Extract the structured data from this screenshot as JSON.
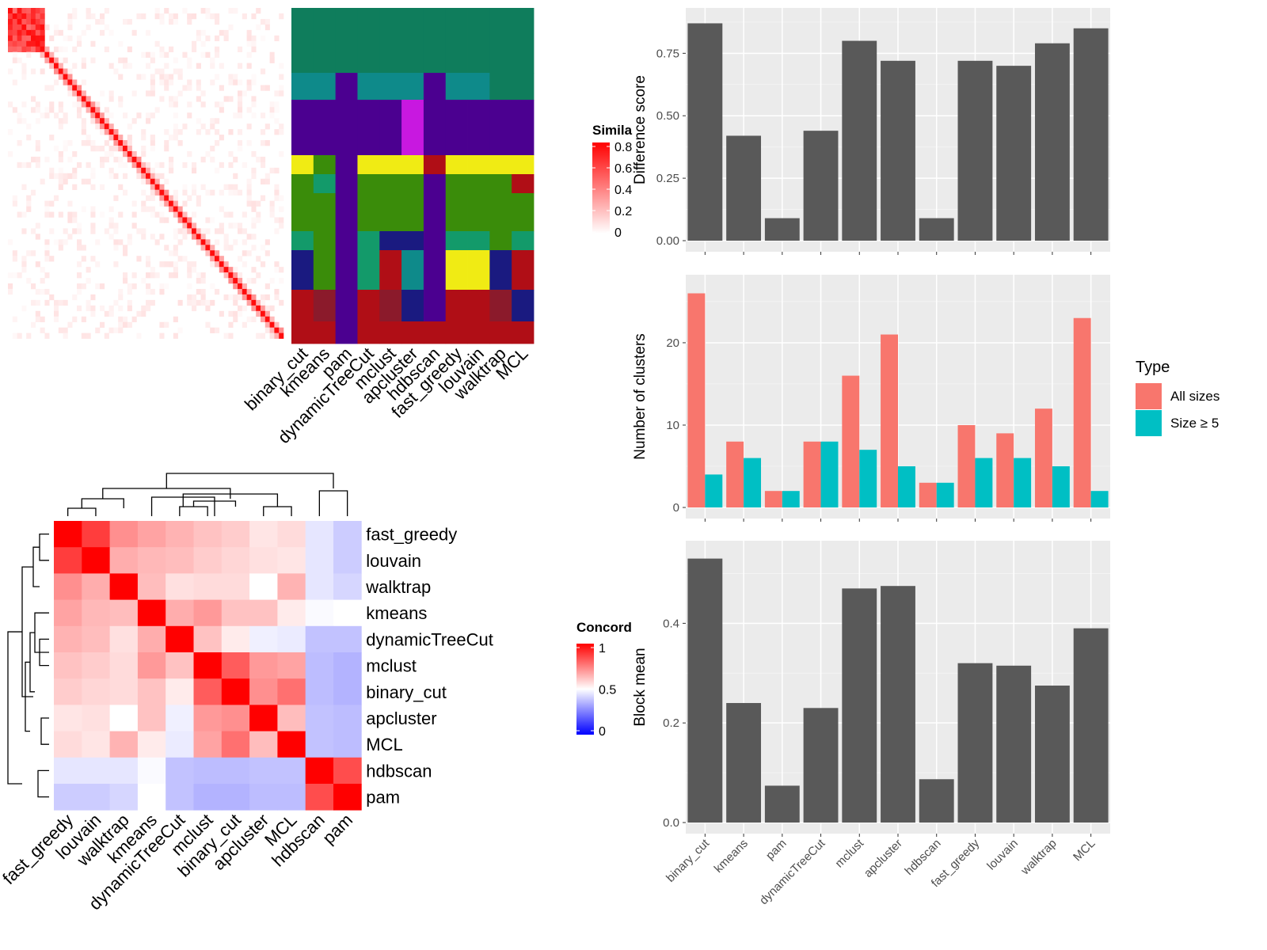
{
  "similarity_heatmap": {
    "legend_title": "Simila",
    "legend_ticks": [
      "0.8",
      "0.6",
      "0.4",
      "0.2",
      "0"
    ],
    "method_labels": [
      "binary_cut",
      "kmeans",
      "pam",
      "dynamicTreeCut",
      "mclust",
      "apcluster",
      "hdbscan",
      "fast_greedy",
      "louvain",
      "walktrap",
      "MCL"
    ]
  },
  "concordance_heatmap": {
    "legend_title": "Concord",
    "legend_ticks": [
      "1",
      "0.5",
      "0"
    ],
    "order": [
      "fast_greedy",
      "louvain",
      "walktrap",
      "kmeans",
      "dynamicTreeCut",
      "mclust",
      "binary_cut",
      "apcluster",
      "MCL",
      "hdbscan",
      "pam"
    ],
    "matrix": [
      [
        1.0,
        0.88,
        0.72,
        0.68,
        0.65,
        0.62,
        0.6,
        0.55,
        0.57,
        0.45,
        0.4
      ],
      [
        0.88,
        1.0,
        0.66,
        0.64,
        0.63,
        0.6,
        0.58,
        0.56,
        0.55,
        0.45,
        0.4
      ],
      [
        0.72,
        0.66,
        1.0,
        0.63,
        0.56,
        0.57,
        0.57,
        0.5,
        0.65,
        0.45,
        0.42
      ],
      [
        0.68,
        0.64,
        0.63,
        1.0,
        0.66,
        0.7,
        0.62,
        0.62,
        0.54,
        0.49,
        0.5
      ],
      [
        0.65,
        0.63,
        0.56,
        0.66,
        1.0,
        0.62,
        0.54,
        0.47,
        0.46,
        0.38,
        0.38
      ],
      [
        0.62,
        0.6,
        0.57,
        0.7,
        0.62,
        1.0,
        0.82,
        0.7,
        0.68,
        0.37,
        0.35
      ],
      [
        0.6,
        0.58,
        0.57,
        0.62,
        0.54,
        0.82,
        1.0,
        0.72,
        0.78,
        0.37,
        0.35
      ],
      [
        0.55,
        0.56,
        0.5,
        0.62,
        0.47,
        0.7,
        0.72,
        1.0,
        0.63,
        0.38,
        0.37
      ],
      [
        0.57,
        0.55,
        0.65,
        0.54,
        0.46,
        0.68,
        0.78,
        0.63,
        1.0,
        0.38,
        0.37
      ],
      [
        0.45,
        0.45,
        0.45,
        0.49,
        0.38,
        0.37,
        0.37,
        0.38,
        0.38,
        1.0,
        0.85
      ],
      [
        0.4,
        0.4,
        0.42,
        0.5,
        0.38,
        0.35,
        0.35,
        0.37,
        0.37,
        0.85,
        1.0
      ]
    ]
  },
  "chart_data": [
    {
      "type": "bar",
      "categories": [
        "binary_cut",
        "kmeans",
        "pam",
        "dynamicTreeCut",
        "mclust",
        "apcluster",
        "hdbscan",
        "fast_greedy",
        "louvain",
        "walktrap",
        "MCL"
      ],
      "values": [
        0.87,
        0.42,
        0.09,
        0.44,
        0.8,
        0.72,
        0.09,
        0.72,
        0.7,
        0.79,
        0.85
      ],
      "ylabel": "Difference score",
      "ylim": [
        0,
        0.9
      ],
      "yticks": [
        "0.00",
        "0.25",
        "0.50",
        "0.75"
      ],
      "grid": true
    },
    {
      "type": "bar",
      "categories": [
        "binary_cut",
        "kmeans",
        "pam",
        "dynamicTreeCut",
        "mclust",
        "apcluster",
        "hdbscan",
        "fast_greedy",
        "louvain",
        "walktrap",
        "MCL"
      ],
      "series": [
        {
          "name": "All sizes",
          "color": "#F8766D",
          "values": [
            26,
            8,
            2,
            8,
            16,
            21,
            3,
            10,
            9,
            12,
            23
          ]
        },
        {
          "name": "Size ≥ 5",
          "color": "#00BFC4",
          "values": [
            4,
            6,
            2,
            8,
            7,
            5,
            3,
            6,
            6,
            5,
            2
          ]
        }
      ],
      "ylabel": "Number of clusters",
      "ylim": [
        0,
        27.3
      ],
      "yticks": [
        "0",
        "10",
        "20"
      ],
      "legend_title": "Type",
      "legend_position": "right",
      "grid": true
    },
    {
      "type": "bar",
      "categories": [
        "binary_cut",
        "kmeans",
        "pam",
        "dynamicTreeCut",
        "mclust",
        "apcluster",
        "hdbscan",
        "fast_greedy",
        "louvain",
        "walktrap",
        "MCL"
      ],
      "values": [
        0.53,
        0.24,
        0.074,
        0.23,
        0.47,
        0.475,
        0.087,
        0.32,
        0.315,
        0.275,
        0.39
      ],
      "ylabel": "Block mean",
      "ylim": [
        0,
        0.55
      ],
      "yticks": [
        "0.0",
        "0.2",
        "0.4"
      ],
      "grid": true
    }
  ]
}
